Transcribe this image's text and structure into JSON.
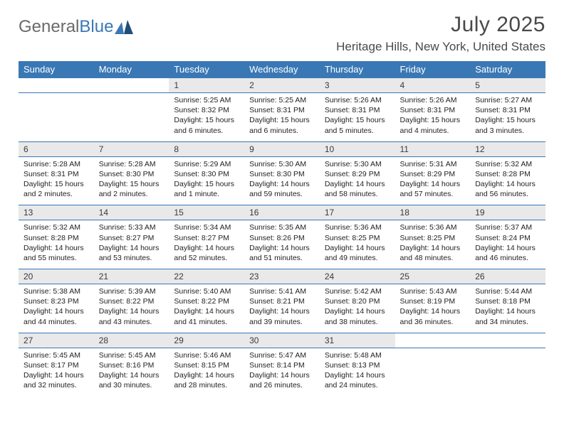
{
  "logo": {
    "text1": "General",
    "text2": "Blue",
    "mark_color": "#3a78b5"
  },
  "title": "July 2025",
  "location": "Heritage Hills, New York, United States",
  "colors": {
    "header_bg": "#3a78b5",
    "header_fg": "#ffffff",
    "daynum_bg": "#e9e9e9",
    "rule": "#3a78b5",
    "text": "#222222",
    "title_color": "#4a4a4a"
  },
  "daynames": [
    "Sunday",
    "Monday",
    "Tuesday",
    "Wednesday",
    "Thursday",
    "Friday",
    "Saturday"
  ],
  "weeks": [
    [
      null,
      null,
      {
        "n": "1",
        "s": "Sunrise: 5:25 AM",
        "t": "Sunset: 8:32 PM",
        "d1": "Daylight: 15 hours",
        "d2": "and 6 minutes."
      },
      {
        "n": "2",
        "s": "Sunrise: 5:25 AM",
        "t": "Sunset: 8:31 PM",
        "d1": "Daylight: 15 hours",
        "d2": "and 6 minutes."
      },
      {
        "n": "3",
        "s": "Sunrise: 5:26 AM",
        "t": "Sunset: 8:31 PM",
        "d1": "Daylight: 15 hours",
        "d2": "and 5 minutes."
      },
      {
        "n": "4",
        "s": "Sunrise: 5:26 AM",
        "t": "Sunset: 8:31 PM",
        "d1": "Daylight: 15 hours",
        "d2": "and 4 minutes."
      },
      {
        "n": "5",
        "s": "Sunrise: 5:27 AM",
        "t": "Sunset: 8:31 PM",
        "d1": "Daylight: 15 hours",
        "d2": "and 3 minutes."
      }
    ],
    [
      {
        "n": "6",
        "s": "Sunrise: 5:28 AM",
        "t": "Sunset: 8:31 PM",
        "d1": "Daylight: 15 hours",
        "d2": "and 2 minutes."
      },
      {
        "n": "7",
        "s": "Sunrise: 5:28 AM",
        "t": "Sunset: 8:30 PM",
        "d1": "Daylight: 15 hours",
        "d2": "and 2 minutes."
      },
      {
        "n": "8",
        "s": "Sunrise: 5:29 AM",
        "t": "Sunset: 8:30 PM",
        "d1": "Daylight: 15 hours",
        "d2": "and 1 minute."
      },
      {
        "n": "9",
        "s": "Sunrise: 5:30 AM",
        "t": "Sunset: 8:30 PM",
        "d1": "Daylight: 14 hours",
        "d2": "and 59 minutes."
      },
      {
        "n": "10",
        "s": "Sunrise: 5:30 AM",
        "t": "Sunset: 8:29 PM",
        "d1": "Daylight: 14 hours",
        "d2": "and 58 minutes."
      },
      {
        "n": "11",
        "s": "Sunrise: 5:31 AM",
        "t": "Sunset: 8:29 PM",
        "d1": "Daylight: 14 hours",
        "d2": "and 57 minutes."
      },
      {
        "n": "12",
        "s": "Sunrise: 5:32 AM",
        "t": "Sunset: 8:28 PM",
        "d1": "Daylight: 14 hours",
        "d2": "and 56 minutes."
      }
    ],
    [
      {
        "n": "13",
        "s": "Sunrise: 5:32 AM",
        "t": "Sunset: 8:28 PM",
        "d1": "Daylight: 14 hours",
        "d2": "and 55 minutes."
      },
      {
        "n": "14",
        "s": "Sunrise: 5:33 AM",
        "t": "Sunset: 8:27 PM",
        "d1": "Daylight: 14 hours",
        "d2": "and 53 minutes."
      },
      {
        "n": "15",
        "s": "Sunrise: 5:34 AM",
        "t": "Sunset: 8:27 PM",
        "d1": "Daylight: 14 hours",
        "d2": "and 52 minutes."
      },
      {
        "n": "16",
        "s": "Sunrise: 5:35 AM",
        "t": "Sunset: 8:26 PM",
        "d1": "Daylight: 14 hours",
        "d2": "and 51 minutes."
      },
      {
        "n": "17",
        "s": "Sunrise: 5:36 AM",
        "t": "Sunset: 8:25 PM",
        "d1": "Daylight: 14 hours",
        "d2": "and 49 minutes."
      },
      {
        "n": "18",
        "s": "Sunrise: 5:36 AM",
        "t": "Sunset: 8:25 PM",
        "d1": "Daylight: 14 hours",
        "d2": "and 48 minutes."
      },
      {
        "n": "19",
        "s": "Sunrise: 5:37 AM",
        "t": "Sunset: 8:24 PM",
        "d1": "Daylight: 14 hours",
        "d2": "and 46 minutes."
      }
    ],
    [
      {
        "n": "20",
        "s": "Sunrise: 5:38 AM",
        "t": "Sunset: 8:23 PM",
        "d1": "Daylight: 14 hours",
        "d2": "and 44 minutes."
      },
      {
        "n": "21",
        "s": "Sunrise: 5:39 AM",
        "t": "Sunset: 8:22 PM",
        "d1": "Daylight: 14 hours",
        "d2": "and 43 minutes."
      },
      {
        "n": "22",
        "s": "Sunrise: 5:40 AM",
        "t": "Sunset: 8:22 PM",
        "d1": "Daylight: 14 hours",
        "d2": "and 41 minutes."
      },
      {
        "n": "23",
        "s": "Sunrise: 5:41 AM",
        "t": "Sunset: 8:21 PM",
        "d1": "Daylight: 14 hours",
        "d2": "and 39 minutes."
      },
      {
        "n": "24",
        "s": "Sunrise: 5:42 AM",
        "t": "Sunset: 8:20 PM",
        "d1": "Daylight: 14 hours",
        "d2": "and 38 minutes."
      },
      {
        "n": "25",
        "s": "Sunrise: 5:43 AM",
        "t": "Sunset: 8:19 PM",
        "d1": "Daylight: 14 hours",
        "d2": "and 36 minutes."
      },
      {
        "n": "26",
        "s": "Sunrise: 5:44 AM",
        "t": "Sunset: 8:18 PM",
        "d1": "Daylight: 14 hours",
        "d2": "and 34 minutes."
      }
    ],
    [
      {
        "n": "27",
        "s": "Sunrise: 5:45 AM",
        "t": "Sunset: 8:17 PM",
        "d1": "Daylight: 14 hours",
        "d2": "and 32 minutes."
      },
      {
        "n": "28",
        "s": "Sunrise: 5:45 AM",
        "t": "Sunset: 8:16 PM",
        "d1": "Daylight: 14 hours",
        "d2": "and 30 minutes."
      },
      {
        "n": "29",
        "s": "Sunrise: 5:46 AM",
        "t": "Sunset: 8:15 PM",
        "d1": "Daylight: 14 hours",
        "d2": "and 28 minutes."
      },
      {
        "n": "30",
        "s": "Sunrise: 5:47 AM",
        "t": "Sunset: 8:14 PM",
        "d1": "Daylight: 14 hours",
        "d2": "and 26 minutes."
      },
      {
        "n": "31",
        "s": "Sunrise: 5:48 AM",
        "t": "Sunset: 8:13 PM",
        "d1": "Daylight: 14 hours",
        "d2": "and 24 minutes."
      },
      null,
      null
    ]
  ]
}
